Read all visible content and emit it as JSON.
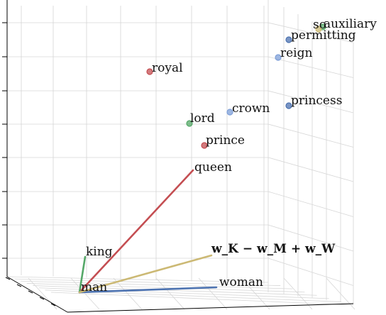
{
  "chart_data": {
    "type": "scatter",
    "title": "",
    "xlabel": "",
    "ylabel": "",
    "zlabel": "",
    "projection": "3d",
    "grid": true,
    "colors": {
      "red": "#c44e52",
      "green": "#55a868",
      "blue": "#4c72b0",
      "lightblue": "#7e9fd8",
      "yellow": "#ccb974"
    },
    "vectors": [
      {
        "word": "queen",
        "label": "queen",
        "color": "red"
      },
      {
        "word": "king",
        "label": "king",
        "color": "green"
      },
      {
        "word": "woman",
        "label": "woman",
        "color": "blue"
      },
      {
        "word": "analogy",
        "label": "w_K − w_M + w_W",
        "color": "yellow"
      }
    ],
    "origin_label": "man",
    "points": [
      {
        "word": "royal",
        "color": "red"
      },
      {
        "word": "prince",
        "color": "red"
      },
      {
        "word": "lord",
        "color": "green"
      },
      {
        "word": "crown",
        "color": "lightblue"
      },
      {
        "word": "princess",
        "color": "blue"
      },
      {
        "word": "reign",
        "color": "lightblue"
      },
      {
        "word": "permitting",
        "color": "blue"
      },
      {
        "word": "auxiliary",
        "color": "green"
      },
      {
        "word": "so",
        "color": "yellow"
      }
    ]
  }
}
